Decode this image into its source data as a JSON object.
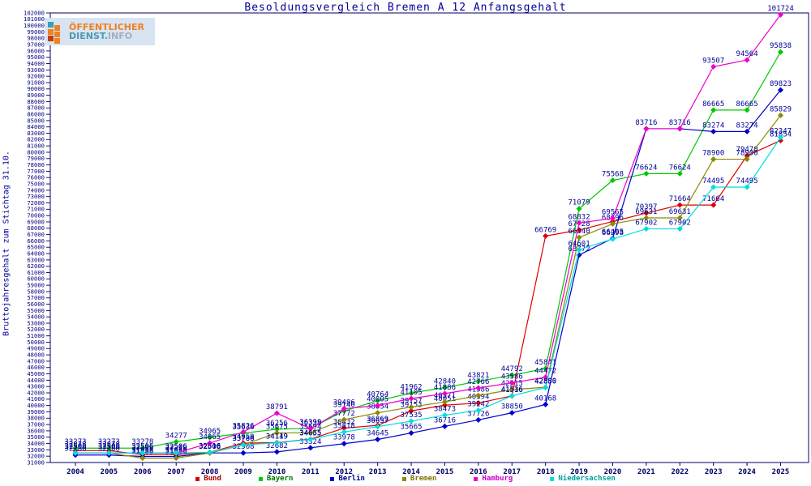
{
  "title": "Besoldungsvergleich Bremen A 12 Anfangsgehalt",
  "logo": {
    "line1": "ÖFFENTLICHER",
    "line2_part1": "DIENST.",
    "line2_part2": "INFO",
    "bg_color": "#d9e4f2",
    "orange": "#f08020",
    "teal": "#3aa0b4"
  },
  "y_axis": {
    "title": "Bruttojahresgehalt zum Stichtag 31.10.",
    "min": 31000,
    "max": 102000,
    "step": 1000
  },
  "x_axis": {
    "years": [
      2004,
      2005,
      2006,
      2007,
      2008,
      2009,
      2010,
      2011,
      2012,
      2013,
      2014,
      2015,
      2016,
      2017,
      2018,
      2019,
      2020,
      2021,
      2022,
      2023,
      2024,
      2025
    ]
  },
  "chart_data": {
    "type": "line",
    "x": [
      2004,
      2005,
      2006,
      2007,
      2008,
      2009,
      2010,
      2011,
      2012,
      2013,
      2014,
      2015,
      2016,
      2017,
      2018,
      2019,
      2020,
      2021,
      2022,
      2023,
      2024,
      2025
    ],
    "ylim": [
      31000,
      102000
    ],
    "grid": false,
    "legend_position": "bottom",
    "series": [
      {
        "name": "Bund",
        "color": "#dd0000",
        "label_color": "#aa0000",
        "values": [
          32878,
          32878,
          32258,
          32258,
          32616,
          34059,
          34149,
          34685,
          36432,
          36869,
          39153,
          40051,
          40394,
          41516,
          66769,
          67728,
          69063,
          70397,
          71664,
          71664,
          79470,
          81854
        ],
        "hide_label_years": [
          2020
        ]
      },
      {
        "name": "Bayern",
        "color": "#00c800",
        "label_color": "#007700",
        "values": [
          33273,
          33273,
          33278,
          34277,
          34965,
          35636,
          36256,
          36399,
          39140,
          40764,
          41962,
          42840,
          43821,
          44792,
          45841,
          71079,
          75568,
          76624,
          76624,
          86665,
          86665,
          95838
        ],
        "hide_label_years": []
      },
      {
        "name": "Berlin",
        "color": "#0000cc",
        "label_color": "#000099",
        "values": [
          32186,
          32186,
          31958,
          31958,
          32508,
          32508,
          32682,
          33324,
          33978,
          34645,
          35665,
          36716,
          37726,
          38850,
          40168,
          63772,
          66405,
          83716,
          83716,
          83274,
          83274,
          89823
        ],
        "hide_label_years": []
      },
      {
        "name": "Bremen",
        "color": "#8b8b00",
        "label_color": "#807700",
        "values": [
          32508,
          32508,
          31686,
          31686,
          32506,
          33786,
          35675,
          35694,
          37772,
          38854,
          39757,
          40571,
          41586,
          42515,
          42880,
          66540,
          68696,
          69631,
          69631,
          78900,
          78900,
          85829
        ],
        "hide_label_years": []
      },
      {
        "name": "Hamburg",
        "color": "#ee00cc",
        "label_color": "#cc00cc",
        "values": [
          32508,
          32508,
          32506,
          32506,
          34065,
          35826,
          38791,
          36338,
          39486,
          40005,
          41105,
          41886,
          42766,
          43586,
          44472,
          68832,
          69565,
          83716,
          83716,
          93507,
          94564,
          101724
        ],
        "hide_label_years": [
          2021,
          2022
        ]
      },
      {
        "name": "Niedersachsen",
        "color": "#00dddd",
        "label_color": "#00a0a0",
        "values": [
          32508,
          32508,
          32506,
          32506,
          32616,
          33786,
          34119,
          34655,
          35818,
          36657,
          37535,
          38473,
          39242,
          41536,
          42850,
          64601,
          66298,
          67902,
          67902,
          74495,
          74495,
          82347
        ],
        "hide_label_years": []
      }
    ]
  },
  "colors": {
    "axis": "#000066",
    "tick_label": "#000080",
    "data_label": "#000099",
    "title": "#000099"
  }
}
